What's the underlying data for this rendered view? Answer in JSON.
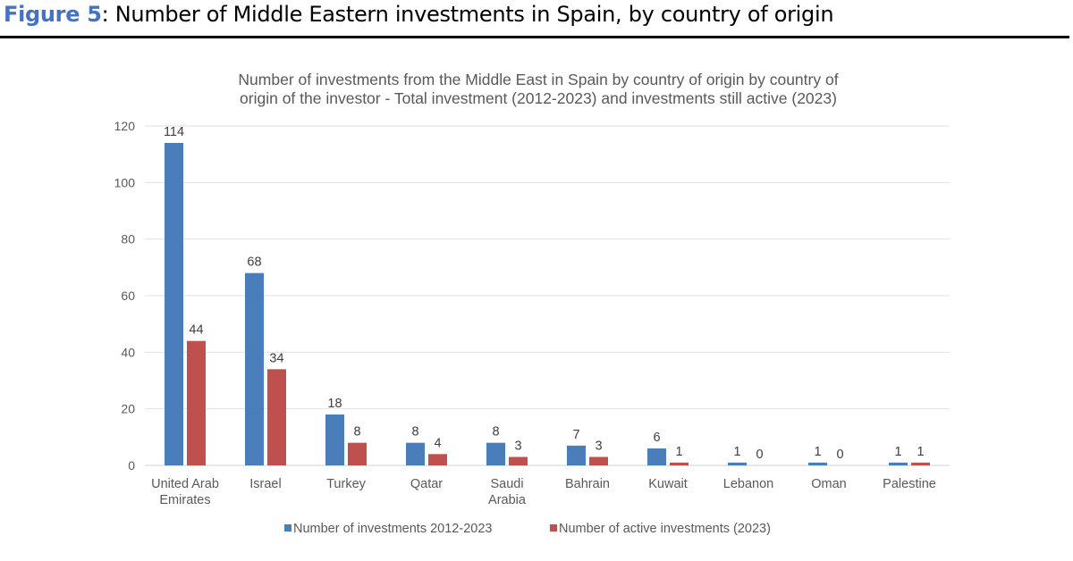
{
  "figure": {
    "number_label": "Figure 5",
    "caption": ": Number of Middle Eastern investments in Spain, by country of origin"
  },
  "chart_data": {
    "type": "bar",
    "title_lines": [
      "Number of investments from the Middle East in Spain by country of origin by country of",
      "origin of the investor - Total investment (2012-2023) and investments still active (2023)"
    ],
    "xlabel": "",
    "ylabel": "",
    "ylim": [
      0,
      120
    ],
    "yticks": [
      0,
      20,
      40,
      60,
      80,
      100,
      120
    ],
    "grid": true,
    "legend_position": "bottom",
    "categories": [
      [
        "United Arab",
        "Emirates"
      ],
      [
        "Israel"
      ],
      [
        "Turkey"
      ],
      [
        "Qatar"
      ],
      [
        "Saudi",
        "Arabia"
      ],
      [
        "Bahrain"
      ],
      [
        "Kuwait"
      ],
      [
        "Lebanon"
      ],
      [
        "Oman"
      ],
      [
        "Palestine"
      ]
    ],
    "series": [
      {
        "name": "Number of investments 2012-2023",
        "color": "#4a7ebb",
        "values": [
          114,
          68,
          18,
          8,
          8,
          7,
          6,
          1,
          1,
          1
        ]
      },
      {
        "name": "Number of active investments (2023)",
        "color": "#c0504d",
        "values": [
          44,
          34,
          8,
          4,
          3,
          3,
          1,
          0,
          0,
          1
        ]
      }
    ]
  }
}
